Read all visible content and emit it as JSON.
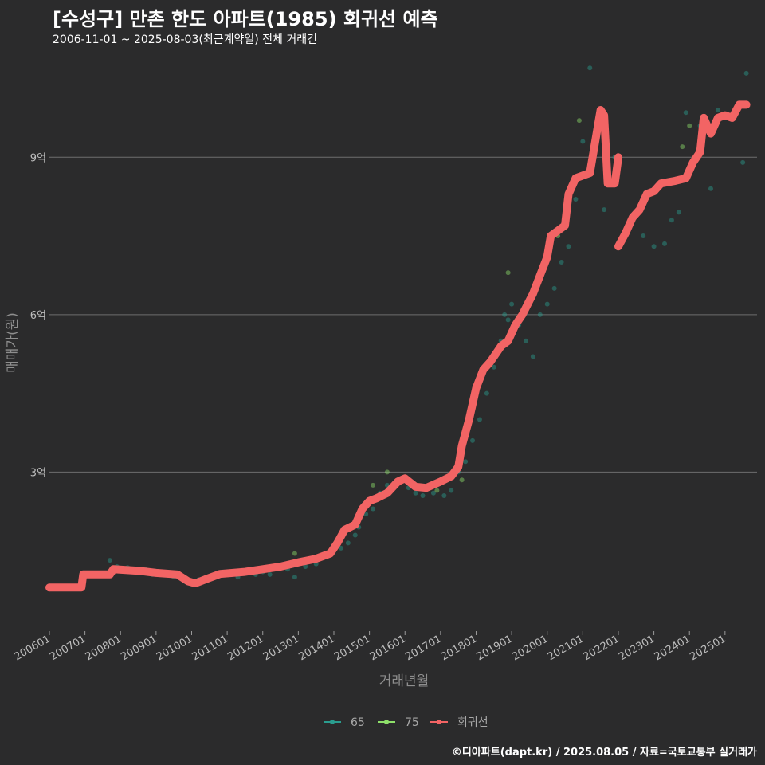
{
  "header": {
    "title": "[수성구] 만촌 한도 아파트(1985) 회귀선 예측",
    "subtitle": "2006-11-01 ~ 2025-08-03(최근계약일) 전체 거래건"
  },
  "footer": {
    "credit": "©디아파트(dapt.kr) / 2025.08.05 / 자료=국토교통부 실거래가"
  },
  "colors": {
    "background": "#2b2b2c",
    "grid": "#6e6e6e",
    "s65": "#2a9d8f",
    "s75": "#8ee06a",
    "regression": "#f26464"
  },
  "chart_data": {
    "type": "scatter",
    "title": "[수성구] 만촌 한도 아파트(1985) 회귀선 예측",
    "xlabel": "거래년월",
    "ylabel": "매매가(원)",
    "x_unit": "year (decimal)",
    "y_unit": "억원",
    "xlim": [
      2006.0,
      2025.9
    ],
    "ylim": [
      0.0,
      10.75
    ],
    "x_ticks": [
      2006,
      2007,
      2008,
      2009,
      2010,
      2011,
      2012,
      2013,
      2014,
      2015,
      2016,
      2017,
      2018,
      2019,
      2020,
      2021,
      2022,
      2023,
      2024,
      2025
    ],
    "x_tick_labels": [
      "200601",
      "200701",
      "200801",
      "200901",
      "201001",
      "201101",
      "201201",
      "201301",
      "201401",
      "201501",
      "201601",
      "201701",
      "201801",
      "201901",
      "202001",
      "202101",
      "202201",
      "202301",
      "202401",
      "202501"
    ],
    "y_ticks": [
      3,
      6,
      9
    ],
    "y_tick_labels": [
      "3억",
      "6억",
      "9억"
    ],
    "legend": {
      "position": "bottom",
      "items": [
        {
          "key": "s65",
          "label": "65"
        },
        {
          "key": "s75",
          "label": "75"
        },
        {
          "key": "regression",
          "label": "회귀선"
        }
      ]
    },
    "series": [
      {
        "name": "65",
        "type": "scatter",
        "points": [
          [
            2007.7,
            1.32
          ],
          [
            2007.9,
            1.2
          ],
          [
            2008.2,
            1.18
          ],
          [
            2008.7,
            1.15
          ],
          [
            2008.9,
            1.05
          ],
          [
            2009.5,
            1.0
          ],
          [
            2009.8,
            0.92
          ],
          [
            2010.2,
            0.95
          ],
          [
            2010.5,
            1.0
          ],
          [
            2010.9,
            1.05
          ],
          [
            2011.3,
            1.0
          ],
          [
            2011.8,
            1.05
          ],
          [
            2012.0,
            1.1
          ],
          [
            2012.2,
            1.05
          ],
          [
            2012.7,
            1.15
          ],
          [
            2012.9,
            1.0
          ],
          [
            2013.2,
            1.2
          ],
          [
            2013.5,
            1.25
          ],
          [
            2013.8,
            1.4
          ],
          [
            2014.0,
            1.5
          ],
          [
            2014.2,
            1.55
          ],
          [
            2014.4,
            1.65
          ],
          [
            2014.6,
            1.8
          ],
          [
            2014.7,
            1.95
          ],
          [
            2014.9,
            2.2
          ],
          [
            2015.1,
            2.3
          ],
          [
            2015.3,
            2.6
          ],
          [
            2015.5,
            2.75
          ],
          [
            2015.7,
            2.8
          ],
          [
            2015.9,
            2.85
          ],
          [
            2016.1,
            2.7
          ],
          [
            2016.3,
            2.6
          ],
          [
            2016.5,
            2.55
          ],
          [
            2016.8,
            2.6
          ],
          [
            2017.1,
            2.55
          ],
          [
            2017.3,
            2.65
          ],
          [
            2017.5,
            3.0
          ],
          [
            2017.7,
            3.2
          ],
          [
            2017.9,
            3.6
          ],
          [
            2018.1,
            4.0
          ],
          [
            2018.3,
            4.5
          ],
          [
            2018.5,
            5.0
          ],
          [
            2018.7,
            5.5
          ],
          [
            2018.8,
            6.0
          ],
          [
            2018.9,
            5.9
          ],
          [
            2019.0,
            6.2
          ],
          [
            2019.2,
            5.8
          ],
          [
            2019.4,
            5.5
          ],
          [
            2019.6,
            5.2
          ],
          [
            2019.8,
            6.0
          ],
          [
            2020.0,
            6.2
          ],
          [
            2020.2,
            6.5
          ],
          [
            2020.4,
            7.0
          ],
          [
            2020.6,
            7.3
          ],
          [
            2020.8,
            8.2
          ],
          [
            2021.0,
            9.3
          ],
          [
            2021.2,
            10.7
          ],
          [
            2021.6,
            8.0
          ],
          [
            2021.9,
            9.0
          ],
          [
            2022.4,
            7.9
          ],
          [
            2022.7,
            7.5
          ],
          [
            2023.0,
            7.3
          ],
          [
            2023.3,
            7.35
          ],
          [
            2023.5,
            7.8
          ],
          [
            2023.7,
            7.95
          ],
          [
            2023.9,
            9.85
          ],
          [
            2024.3,
            9.6
          ],
          [
            2024.6,
            8.4
          ],
          [
            2024.8,
            9.9
          ],
          [
            2025.2,
            9.8
          ],
          [
            2025.5,
            8.9
          ],
          [
            2025.6,
            10.6
          ]
        ]
      },
      {
        "name": "75",
        "type": "scatter",
        "points": [
          [
            2012.9,
            1.45
          ],
          [
            2015.5,
            3.0
          ],
          [
            2015.1,
            2.75
          ],
          [
            2016.9,
            2.65
          ],
          [
            2017.6,
            2.85
          ],
          [
            2018.9,
            6.8
          ],
          [
            2020.3,
            7.5
          ],
          [
            2020.9,
            9.7
          ],
          [
            2023.8,
            9.2
          ],
          [
            2024.0,
            9.6
          ]
        ]
      },
      {
        "name": "회귀선",
        "type": "line",
        "segments": [
          [
            [
              2006.0,
              0.8
            ],
            [
              2006.9,
              0.8
            ],
            [
              2006.95,
              1.05
            ],
            [
              2007.7,
              1.05
            ],
            [
              2007.8,
              1.15
            ],
            [
              2008.5,
              1.12
            ],
            [
              2009.0,
              1.08
            ],
            [
              2009.6,
              1.05
            ],
            [
              2009.9,
              0.92
            ],
            [
              2010.1,
              0.88
            ],
            [
              2010.4,
              0.96
            ],
            [
              2010.8,
              1.06
            ],
            [
              2011.5,
              1.1
            ],
            [
              2012.0,
              1.15
            ],
            [
              2012.5,
              1.2
            ],
            [
              2013.0,
              1.28
            ],
            [
              2013.5,
              1.35
            ],
            [
              2013.9,
              1.45
            ],
            [
              2014.1,
              1.65
            ],
            [
              2014.3,
              1.9
            ],
            [
              2014.6,
              2.0
            ],
            [
              2014.8,
              2.3
            ],
            [
              2015.0,
              2.45
            ],
            [
              2015.2,
              2.5
            ],
            [
              2015.5,
              2.6
            ],
            [
              2015.8,
              2.82
            ],
            [
              2016.0,
              2.88
            ],
            [
              2016.3,
              2.72
            ],
            [
              2016.6,
              2.7
            ],
            [
              2017.0,
              2.82
            ],
            [
              2017.3,
              2.92
            ],
            [
              2017.5,
              3.1
            ],
            [
              2017.6,
              3.5
            ],
            [
              2017.8,
              4.0
            ],
            [
              2018.0,
              4.6
            ],
            [
              2018.2,
              4.95
            ],
            [
              2018.4,
              5.1
            ],
            [
              2018.6,
              5.3
            ],
            [
              2018.7,
              5.4
            ],
            [
              2018.9,
              5.5
            ],
            [
              2019.1,
              5.8
            ],
            [
              2019.3,
              6.0
            ],
            [
              2019.6,
              6.4
            ],
            [
              2019.8,
              6.75
            ],
            [
              2020.0,
              7.1
            ],
            [
              2020.1,
              7.5
            ],
            [
              2020.3,
              7.6
            ],
            [
              2020.5,
              7.7
            ],
            [
              2020.6,
              8.3
            ],
            [
              2020.8,
              8.6
            ],
            [
              2021.0,
              8.65
            ],
            [
              2021.2,
              8.7
            ],
            [
              2021.4,
              9.5
            ],
            [
              2021.5,
              9.9
            ],
            [
              2021.6,
              9.8
            ],
            [
              2021.7,
              8.5
            ],
            [
              2021.9,
              8.5
            ],
            [
              2022.0,
              9.0
            ]
          ],
          [
            [
              2022.0,
              7.3
            ],
            [
              2022.2,
              7.55
            ],
            [
              2022.4,
              7.85
            ],
            [
              2022.6,
              8.0
            ],
            [
              2022.8,
              8.3
            ],
            [
              2023.0,
              8.35
            ],
            [
              2023.2,
              8.5
            ],
            [
              2023.6,
              8.55
            ],
            [
              2023.9,
              8.6
            ],
            [
              2024.1,
              8.9
            ],
            [
              2024.3,
              9.1
            ],
            [
              2024.4,
              9.75
            ],
            [
              2024.6,
              9.45
            ],
            [
              2024.8,
              9.75
            ],
            [
              2025.0,
              9.8
            ],
            [
              2025.2,
              9.75
            ],
            [
              2025.4,
              10.0
            ],
            [
              2025.6,
              10.0
            ]
          ]
        ]
      }
    ]
  }
}
